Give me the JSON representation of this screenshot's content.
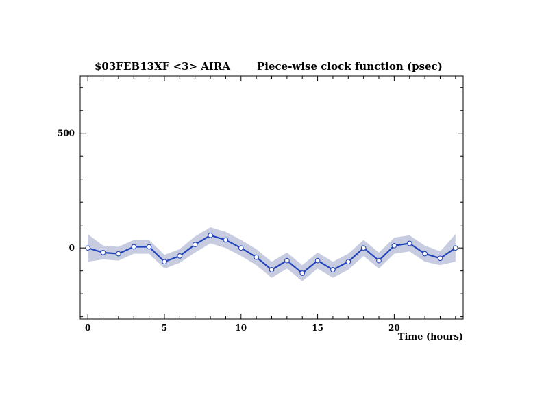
{
  "chart_data": {
    "type": "line",
    "title_left": "$03FEB13XF <3>  AIRA",
    "title_right": "Piece-wise clock function (psec)",
    "xlabel": "Time (hours)",
    "ylabel": "",
    "xlim": [
      -0.5,
      24.5
    ],
    "ylim": [
      -310,
      750
    ],
    "x_ticks": [
      0,
      5,
      10,
      15,
      20
    ],
    "y_ticks": [
      0,
      500
    ],
    "grid": false,
    "colors": {
      "line": "#2244bb",
      "band": "#c8cce0",
      "marker_fill": "#ffffff"
    },
    "series": [
      {
        "x": [
          0,
          1,
          2,
          3,
          4,
          5,
          6,
          7,
          8,
          9,
          10,
          11,
          12,
          13,
          14,
          15,
          16,
          17,
          18,
          19,
          20,
          21,
          22,
          23,
          24
        ],
        "y": [
          0,
          -20,
          -25,
          5,
          5,
          -60,
          -35,
          15,
          55,
          35,
          0,
          -40,
          -95,
          -55,
          -110,
          -55,
          -95,
          -60,
          0,
          -55,
          10,
          20,
          -25,
          -45,
          0
        ],
        "error": [
          60,
          30,
          30,
          30,
          30,
          30,
          30,
          35,
          35,
          35,
          35,
          35,
          35,
          35,
          35,
          35,
          35,
          35,
          35,
          35,
          35,
          35,
          35,
          30,
          60
        ]
      }
    ]
  }
}
